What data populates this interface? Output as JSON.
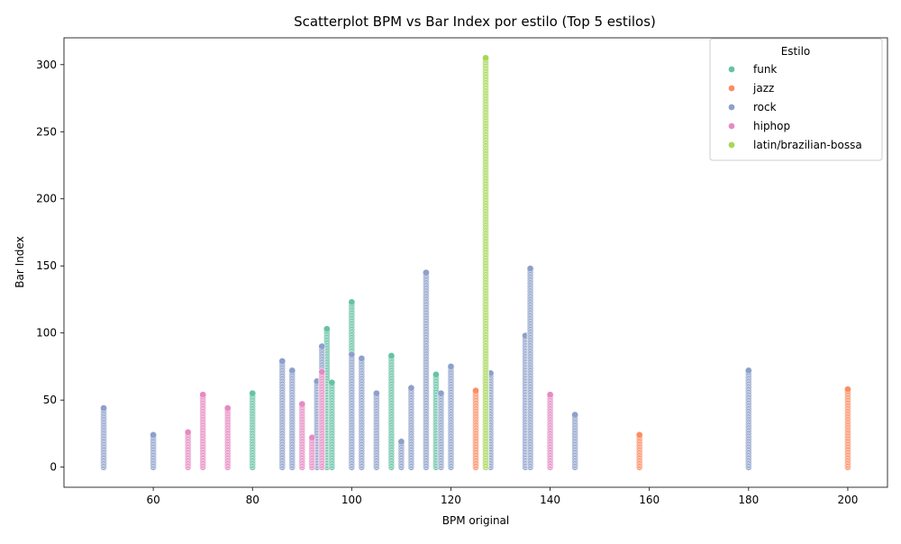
{
  "chart_data": {
    "type": "scatter",
    "title": "Scatterplot BPM vs Bar Index por estilo (Top 5 estilos)",
    "xlabel": "BPM original",
    "ylabel": "Bar Index",
    "xlim": [
      42,
      208
    ],
    "ylim": [
      -15,
      320
    ],
    "xticks": [
      60,
      80,
      100,
      120,
      140,
      160,
      180,
      200
    ],
    "yticks": [
      0,
      50,
      100,
      150,
      200,
      250,
      300
    ],
    "grid": false,
    "legend": {
      "title": "Estilo",
      "placement": "top-right"
    },
    "point_spacing": 1,
    "series": [
      {
        "name": "funk",
        "color": "#66c2a5",
        "columns": [
          {
            "x": 80,
            "max": 55
          },
          {
            "x": 95,
            "max": 103
          },
          {
            "x": 96,
            "max": 63
          },
          {
            "x": 100,
            "max": 123
          },
          {
            "x": 108,
            "max": 83
          },
          {
            "x": 112,
            "max": 44
          },
          {
            "x": 115,
            "max": 119
          },
          {
            "x": 117,
            "max": 69
          }
        ]
      },
      {
        "name": "jazz",
        "color": "#fc8d62",
        "columns": [
          {
            "x": 125,
            "max": 57
          },
          {
            "x": 158,
            "max": 24
          },
          {
            "x": 200,
            "max": 58
          }
        ]
      },
      {
        "name": "rock",
        "color": "#8da0cb",
        "columns": [
          {
            "x": 50,
            "max": 44
          },
          {
            "x": 60,
            "max": 24
          },
          {
            "x": 86,
            "max": 79
          },
          {
            "x": 88,
            "max": 72
          },
          {
            "x": 90,
            "max": 25
          },
          {
            "x": 92,
            "max": 9
          },
          {
            "x": 93,
            "max": 64
          },
          {
            "x": 94,
            "max": 90
          },
          {
            "x": 100,
            "max": 84
          },
          {
            "x": 102,
            "max": 81
          },
          {
            "x": 105,
            "max": 55
          },
          {
            "x": 110,
            "max": 19
          },
          {
            "x": 112,
            "max": 59
          },
          {
            "x": 115,
            "max": 145
          },
          {
            "x": 118,
            "max": 55
          },
          {
            "x": 120,
            "max": 75
          },
          {
            "x": 127,
            "max": 80
          },
          {
            "x": 128,
            "max": 70
          },
          {
            "x": 135,
            "max": 98
          },
          {
            "x": 136,
            "max": 148
          },
          {
            "x": 145,
            "max": 39
          },
          {
            "x": 180,
            "max": 72
          }
        ]
      },
      {
        "name": "hiphop",
        "color": "#e78ac3",
        "columns": [
          {
            "x": 67,
            "max": 26
          },
          {
            "x": 70,
            "max": 54
          },
          {
            "x": 75,
            "max": 44
          },
          {
            "x": 90,
            "max": 47
          },
          {
            "x": 92,
            "max": 22
          },
          {
            "x": 94,
            "max": 71
          },
          {
            "x": 140,
            "max": 54
          }
        ]
      },
      {
        "name": "latin/brazilian-bossa",
        "color": "#a6d854",
        "columns": [
          {
            "x": 127,
            "max": 305
          }
        ]
      }
    ]
  }
}
